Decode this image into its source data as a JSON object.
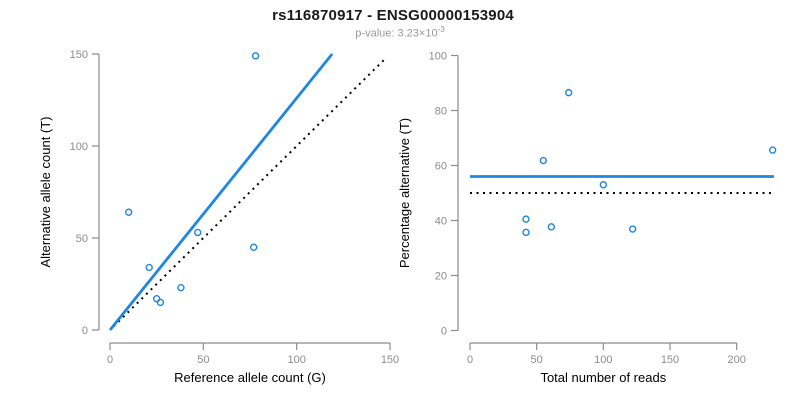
{
  "header": {
    "title": "rs116870917 - ENSG00000153904",
    "subtitle_prefix": "p-value: 3.23×10",
    "subtitle_exponent": "-3"
  },
  "colors": {
    "accent_blue": "#1E87E5",
    "axis_gray": "#8A8A8A",
    "tick_label_gray": "#8C8C8C",
    "axis_title_black": "#000000",
    "dotted_black": "#000000",
    "subtitle_gray": "#999999",
    "title_black": "#1A1A1A"
  },
  "chart_data": [
    {
      "id": "allele-counts",
      "type": "scatter",
      "title": "",
      "xlabel": "Reference allele count (G)",
      "ylabel": "Alternative allele count (T)",
      "xlim": [
        0,
        150
      ],
      "ylim": [
        0,
        150
      ],
      "xticks": [
        0,
        50,
        100,
        150
      ],
      "yticks": [
        0,
        50,
        100,
        150
      ],
      "grid": false,
      "legend": null,
      "marker": "open-circle",
      "points": [
        [
          10,
          64
        ],
        [
          21,
          34
        ],
        [
          25,
          17
        ],
        [
          27,
          15
        ],
        [
          38,
          23
        ],
        [
          47,
          53
        ],
        [
          77,
          45
        ],
        [
          78,
          149
        ]
      ],
      "lines": [
        {
          "name": "identity",
          "style": "dotted",
          "color_key": "dotted_black",
          "x1": 2,
          "y1": 2,
          "x2": 148,
          "y2": 148
        },
        {
          "name": "regression-fit",
          "style": "solid",
          "color_key": "accent_blue",
          "x1": 0,
          "y1": 0,
          "x2": 119,
          "y2": 150
        }
      ]
    },
    {
      "id": "percentage-vs-reads",
      "type": "scatter",
      "title": "",
      "xlabel": "Total number of reads",
      "ylabel": "Percentage alternative (T)",
      "xlim": [
        0,
        229
      ],
      "ylim": [
        0,
        100
      ],
      "xticks": [
        0,
        50,
        100,
        150,
        200
      ],
      "yticks": [
        0,
        20,
        40,
        60,
        80,
        100
      ],
      "grid": false,
      "legend": null,
      "marker": "open-circle",
      "points": [
        [
          42,
          40.5
        ],
        [
          42,
          35.7
        ],
        [
          55,
          61.8
        ],
        [
          61,
          37.7
        ],
        [
          74,
          86.5
        ],
        [
          100,
          53
        ],
        [
          122,
          36.9
        ],
        [
          227,
          65.6
        ]
      ],
      "lines": [
        {
          "name": "expected-50-percent",
          "style": "dotted",
          "color_key": "dotted_black",
          "x1": 0,
          "y1": 50,
          "x2": 228,
          "y2": 50
        },
        {
          "name": "mean-percentage",
          "style": "solid",
          "color_key": "accent_blue",
          "x1": 0,
          "y1": 56,
          "x2": 228,
          "y2": 56
        }
      ]
    }
  ]
}
